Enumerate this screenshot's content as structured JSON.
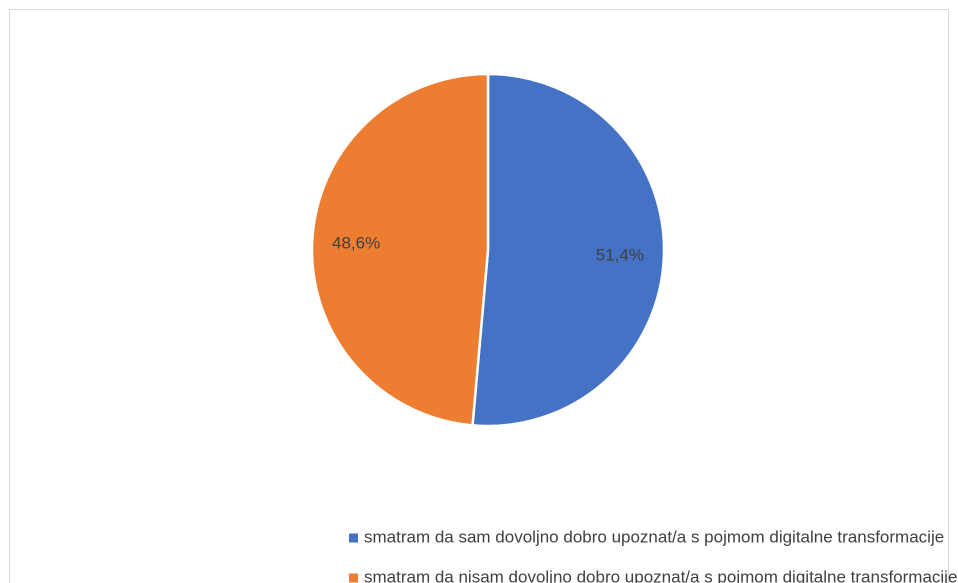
{
  "chart_data": {
    "type": "pie",
    "categories": [
      "smatram da sam dovoljno dobro upoznat/a s pojmom digitalne transformacije",
      "smatram da nisam dovoljno dobro upoznat/a s pojmom digitalne transformacije"
    ],
    "values": [
      51.4,
      48.6
    ],
    "value_labels": [
      "51,4%",
      "48,6%"
    ],
    "colors": [
      "#4472c4",
      "#ed7d31"
    ],
    "legend": "bottom"
  }
}
